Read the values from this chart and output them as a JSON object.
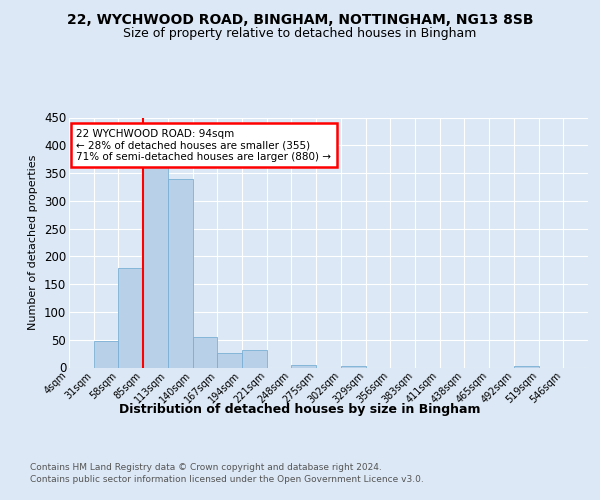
{
  "title1": "22, WYCHWOOD ROAD, BINGHAM, NOTTINGHAM, NG13 8SB",
  "title2": "Size of property relative to detached houses in Bingham",
  "xlabel": "Distribution of detached houses by size in Bingham",
  "ylabel": "Number of detached properties",
  "footer1": "Contains HM Land Registry data © Crown copyright and database right 2024.",
  "footer2": "Contains public sector information licensed under the Open Government Licence v3.0.",
  "bin_labels": [
    "4sqm",
    "31sqm",
    "58sqm",
    "85sqm",
    "113sqm",
    "140sqm",
    "167sqm",
    "194sqm",
    "221sqm",
    "248sqm",
    "275sqm",
    "302sqm",
    "329sqm",
    "356sqm",
    "383sqm",
    "411sqm",
    "438sqm",
    "465sqm",
    "492sqm",
    "519sqm",
    "546sqm"
  ],
  "bar_heights": [
    0,
    48,
    180,
    365,
    340,
    55,
    27,
    32,
    0,
    5,
    0,
    3,
    0,
    0,
    0,
    0,
    0,
    0,
    3,
    0,
    0
  ],
  "bar_color": "#b8d0e8",
  "bar_edgecolor": "#7aafd4",
  "redline_index": 3,
  "annotation_text": "22 WYCHWOOD ROAD: 94sqm\n← 28% of detached houses are smaller (355)\n71% of semi-detached houses are larger (880) →",
  "annotation_box_color": "white",
  "annotation_box_edgecolor": "red",
  "ylim": [
    0,
    450
  ],
  "yticks": [
    0,
    50,
    100,
    150,
    200,
    250,
    300,
    350,
    400,
    450
  ],
  "background_color": "#dce8f5",
  "plot_background": "#dce8f5",
  "fig_width": 6.0,
  "fig_height": 5.0,
  "dpi": 100
}
